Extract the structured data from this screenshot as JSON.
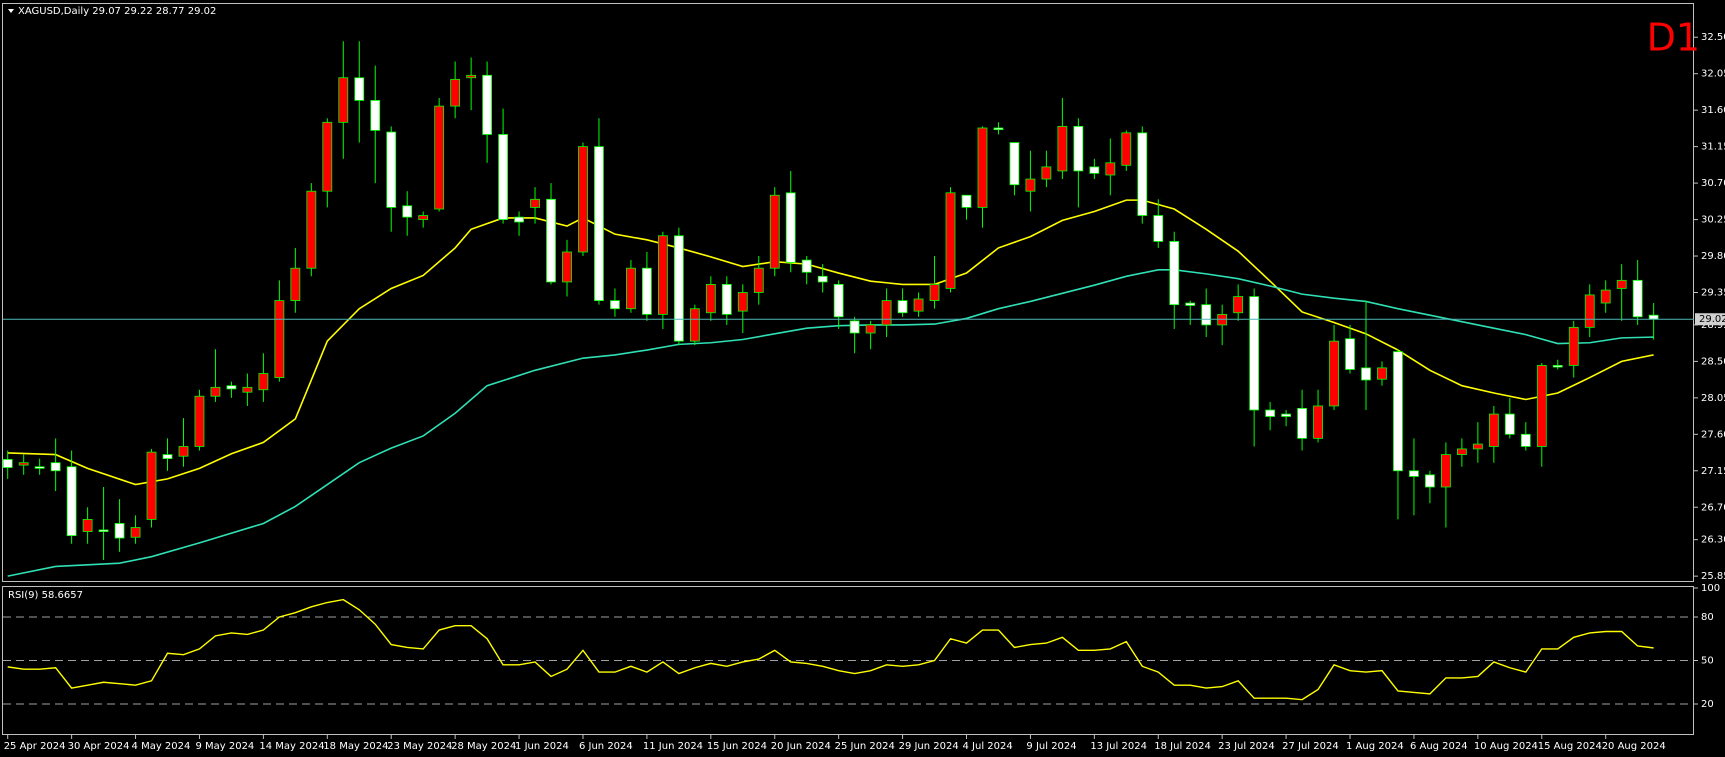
{
  "chart_data": [
    {
      "type": "candlestick",
      "title": "XAGUSD,Daily  29.07 29.22 28.77 29.02",
      "timeframe": "D1",
      "categories": [
        "25 Apr 2024",
        null,
        null,
        null,
        "30 Apr 2024",
        null,
        null,
        null,
        "4 May 2024",
        null,
        null,
        null,
        "9 May 2024",
        null,
        null,
        null,
        "14 May 2024",
        null,
        null,
        null,
        "18 May 2024",
        null,
        null,
        null,
        "23 May 2024",
        null,
        null,
        null,
        "28 May 2024",
        null,
        null,
        null,
        "1 Jun 2024",
        null,
        null,
        null,
        "6 Jun 2024",
        null,
        null,
        null,
        "11 Jun 2024",
        null,
        null,
        null,
        "15 Jun 2024",
        null,
        null,
        null,
        "20 Jun 2024",
        null,
        null,
        null,
        "25 Jun 2024",
        null,
        null,
        null,
        "29 Jun 2024",
        null,
        null,
        null,
        "4 Jul 2024",
        null,
        null,
        null,
        "9 Jul 2024",
        null,
        null,
        null,
        "13 Jul 2024",
        null,
        null,
        null,
        "18 Jul 2024",
        null,
        null,
        null,
        "23 Jul 2024",
        null,
        null,
        null,
        "27 Jul 2024",
        null,
        null,
        null,
        "1 Aug 2024",
        null,
        null,
        null,
        "6 Aug 2024",
        null,
        null,
        null,
        "10 Aug 2024",
        null,
        null,
        null,
        "15 Aug 2024",
        null,
        null,
        null,
        "20 Aug 2024",
        null,
        null,
        null
      ],
      "open": [
        27.29,
        27.22,
        27.2,
        27.25,
        27.2,
        26.4,
        26.42,
        26.5,
        26.33,
        26.55,
        27.35,
        27.33,
        27.45,
        28.07,
        28.2,
        28.12,
        28.15,
        28.3,
        29.25,
        29.65,
        30.6,
        31.45,
        32.0,
        31.72,
        31.33,
        30.42,
        30.25,
        30.38,
        31.65,
        32.0,
        32.03,
        31.3,
        30.28,
        30.4,
        30.5,
        29.48,
        29.85,
        31.15,
        29.25,
        29.15,
        29.65,
        29.08,
        30.05,
        28.75,
        29.1,
        29.45,
        29.12,
        29.35,
        29.65,
        30.58,
        29.75,
        29.55,
        29.45,
        29.0,
        28.85,
        28.95,
        29.25,
        29.12,
        29.25,
        29.4,
        30.55,
        30.4,
        31.38,
        31.2,
        30.6,
        30.75,
        30.85,
        31.4,
        30.9,
        30.8,
        30.92,
        31.32,
        30.3,
        29.98,
        29.22,
        29.2,
        28.95,
        29.1,
        29.3,
        27.9,
        27.85,
        27.92,
        27.55,
        27.95,
        28.78,
        28.42,
        28.28,
        28.62,
        27.15,
        27.1,
        26.95,
        27.35,
        27.42,
        27.45,
        27.85,
        27.6,
        27.45,
        28.45,
        28.45,
        28.92,
        29.22,
        29.4,
        29.5,
        29.07
      ],
      "high": [
        27.4,
        27.35,
        27.3,
        27.55,
        27.4,
        26.7,
        26.95,
        26.8,
        26.6,
        27.42,
        27.55,
        27.8,
        28.15,
        28.65,
        28.25,
        28.35,
        28.6,
        29.5,
        29.9,
        30.7,
        31.5,
        32.45,
        32.45,
        32.15,
        31.4,
        30.6,
        30.35,
        31.75,
        32.2,
        32.25,
        32.2,
        31.62,
        30.35,
        30.65,
        30.7,
        30.0,
        31.2,
        31.5,
        29.4,
        29.75,
        29.85,
        30.1,
        30.15,
        29.2,
        29.55,
        29.55,
        29.45,
        29.8,
        30.65,
        30.85,
        29.8,
        29.7,
        29.5,
        29.05,
        29.0,
        29.4,
        29.4,
        29.35,
        29.8,
        30.65,
        30.55,
        31.4,
        31.45,
        31.2,
        31.1,
        31.1,
        31.75,
        31.5,
        31.0,
        31.25,
        31.35,
        31.4,
        30.5,
        30.1,
        29.25,
        29.4,
        29.2,
        29.45,
        29.4,
        28.0,
        27.9,
        28.15,
        28.15,
        28.95,
        28.95,
        29.25,
        28.5,
        28.65,
        27.55,
        27.15,
        27.5,
        27.55,
        27.75,
        27.95,
        28.05,
        27.75,
        28.48,
        28.52,
        29.0,
        29.45,
        29.5,
        29.7,
        29.75,
        29.22
      ],
      "low": [
        27.05,
        27.1,
        27.1,
        26.9,
        26.25,
        26.25,
        26.05,
        26.15,
        26.25,
        26.45,
        27.15,
        27.2,
        27.4,
        28.0,
        28.05,
        27.95,
        28.0,
        28.25,
        29.1,
        29.55,
        30.4,
        31.0,
        31.2,
        30.7,
        30.1,
        30.05,
        30.15,
        30.35,
        31.5,
        31.6,
        30.95,
        30.2,
        30.05,
        30.2,
        29.45,
        29.3,
        29.8,
        29.2,
        29.05,
        29.1,
        29.0,
        28.9,
        28.7,
        28.7,
        29.0,
        28.95,
        28.85,
        29.2,
        29.55,
        29.6,
        29.45,
        29.35,
        28.9,
        28.6,
        28.65,
        28.8,
        29.05,
        29.05,
        29.15,
        29.35,
        30.25,
        30.15,
        31.3,
        30.55,
        30.35,
        30.65,
        30.75,
        30.4,
        30.75,
        30.55,
        30.85,
        30.2,
        29.9,
        28.9,
        28.95,
        28.8,
        28.7,
        29.0,
        27.45,
        27.65,
        27.7,
        27.4,
        27.5,
        27.9,
        28.35,
        27.9,
        28.2,
        26.55,
        26.6,
        26.75,
        26.45,
        27.2,
        27.25,
        27.25,
        27.55,
        27.4,
        27.2,
        28.4,
        28.3,
        28.8,
        29.1,
        29.0,
        28.95,
        28.77
      ],
      "close": [
        27.19,
        27.25,
        27.18,
        27.15,
        26.35,
        26.55,
        26.4,
        26.32,
        26.45,
        27.38,
        27.3,
        27.45,
        28.07,
        28.18,
        28.16,
        28.18,
        28.35,
        29.25,
        29.65,
        30.6,
        31.45,
        32.0,
        31.72,
        31.35,
        30.4,
        30.28,
        30.3,
        31.65,
        31.98,
        32.03,
        31.3,
        30.25,
        30.22,
        30.5,
        29.48,
        29.85,
        31.15,
        29.25,
        29.15,
        29.65,
        29.08,
        30.05,
        28.75,
        29.15,
        29.45,
        29.08,
        29.35,
        29.65,
        30.55,
        29.72,
        29.6,
        29.48,
        29.05,
        28.85,
        28.95,
        29.25,
        29.1,
        29.27,
        29.45,
        30.58,
        30.4,
        31.38,
        31.36,
        30.68,
        30.75,
        30.9,
        31.4,
        30.85,
        30.82,
        30.95,
        31.32,
        30.3,
        29.98,
        29.2,
        29.19,
        28.95,
        29.08,
        29.3,
        27.9,
        27.82,
        27.82,
        27.55,
        27.95,
        28.75,
        28.4,
        28.27,
        28.42,
        27.15,
        27.08,
        26.95,
        27.35,
        27.42,
        27.48,
        27.85,
        27.6,
        27.45,
        28.45,
        28.43,
        28.92,
        29.32,
        29.38,
        29.5,
        29.05,
        29.02
      ],
      "up_color": "#ff0000",
      "down_color": "#ffffff",
      "wick_color": "#00ff00",
      "series": [
        {
          "color": "#ffff00",
          "x": [
            0,
            3,
            5,
            8,
            10,
            12,
            14,
            16,
            18,
            20,
            22,
            24,
            26,
            28,
            29,
            31,
            33,
            35,
            36,
            38,
            40,
            42,
            44,
            46,
            48,
            50,
            52,
            54,
            56,
            58,
            60,
            62,
            64,
            66,
            68,
            70,
            71,
            73,
            75,
            77,
            79,
            81,
            83,
            85,
            87,
            89,
            91,
            93,
            95,
            97,
            99,
            101,
            103
          ],
          "values": [
            27.37,
            27.35,
            27.18,
            26.98,
            27.05,
            27.18,
            27.36,
            27.5,
            27.79,
            28.75,
            29.15,
            29.4,
            29.56,
            29.9,
            30.13,
            30.27,
            30.27,
            30.17,
            30.27,
            30.07,
            30.0,
            29.9,
            29.79,
            29.67,
            29.73,
            29.7,
            29.59,
            29.49,
            29.45,
            29.45,
            29.59,
            29.9,
            30.04,
            30.24,
            30.35,
            30.49,
            30.49,
            30.38,
            30.13,
            29.86,
            29.49,
            29.11,
            28.98,
            28.84,
            28.64,
            28.39,
            28.2,
            28.11,
            28.03,
            28.11,
            28.3,
            28.5,
            28.58
          ]
        },
        {
          "color": "#2fe0b5",
          "x": [
            0,
            3,
            7,
            9,
            12,
            16,
            18,
            20,
            22,
            24,
            26,
            28,
            30,
            33,
            36,
            38,
            40,
            42,
            44,
            46,
            48,
            50,
            52,
            54,
            56,
            58,
            60,
            62,
            64,
            66,
            68,
            70,
            72,
            73,
            75,
            77,
            79,
            81,
            83,
            85,
            87,
            89,
            91,
            93,
            95,
            97,
            99,
            101,
            103
          ],
          "values": [
            25.85,
            25.97,
            26.01,
            26.09,
            26.26,
            26.5,
            26.71,
            26.98,
            27.25,
            27.43,
            27.58,
            27.86,
            28.2,
            28.39,
            28.54,
            28.58,
            28.64,
            28.71,
            28.73,
            28.77,
            28.84,
            28.91,
            28.94,
            28.95,
            28.95,
            28.96,
            29.03,
            29.15,
            29.24,
            29.34,
            29.44,
            29.55,
            29.63,
            29.63,
            29.58,
            29.52,
            29.43,
            29.33,
            29.28,
            29.24,
            29.15,
            29.07,
            28.99,
            28.91,
            28.83,
            28.72,
            28.73,
            28.79,
            28.8
          ]
        }
      ],
      "current_price": 29.02,
      "current_price_color": "#4fb8b8",
      "ylim": [
        25.79,
        32.91
      ],
      "yticks": [
        {
          "value": 25.85,
          "label": "25.85"
        },
        {
          "value": 26.3,
          "label": "26.30"
        },
        {
          "value": 26.7,
          "label": "26.70"
        },
        {
          "value": 27.15,
          "label": "27.15"
        },
        {
          "value": 27.6,
          "label": "27.60"
        },
        {
          "value": 28.05,
          "label": "28.05"
        },
        {
          "value": 28.5,
          "label": "28.50"
        },
        {
          "value": 28.95,
          "label": "28.95"
        },
        {
          "value": 29.35,
          "label": "29.35"
        },
        {
          "value": 29.8,
          "label": "29.80"
        },
        {
          "value": 30.25,
          "label": "30.25"
        },
        {
          "value": 30.7,
          "label": "30.70"
        },
        {
          "value": 31.15,
          "label": "31.15"
        },
        {
          "value": 31.6,
          "label": "31.60"
        },
        {
          "value": 32.05,
          "label": "32.05"
        },
        {
          "value": 32.5,
          "label": "32.50"
        }
      ]
    },
    {
      "type": "line",
      "title": "RSI(9) 58.6657",
      "color": "#ffff00",
      "values": [
        45.6,
        44,
        44,
        45,
        31,
        33,
        35,
        34,
        33,
        36,
        55,
        54,
        58,
        67,
        69,
        68,
        71,
        80,
        83,
        87,
        90,
        92,
        85,
        75,
        61,
        59,
        58,
        71,
        74,
        74,
        65,
        47,
        47,
        49,
        39,
        44,
        57,
        42,
        42,
        46,
        42,
        49,
        41,
        45,
        48,
        46,
        49,
        51,
        57,
        49,
        48,
        46,
        43,
        41,
        43,
        47,
        46,
        47,
        50,
        65,
        62,
        71,
        71,
        59,
        61,
        62,
        66,
        57,
        57,
        58,
        63,
        46,
        42,
        33,
        33,
        31,
        32,
        36,
        24,
        24,
        24,
        23,
        30,
        47,
        43,
        42,
        43,
        29,
        28,
        27,
        38,
        38,
        39,
        49,
        45,
        42,
        58,
        58,
        66,
        69,
        70,
        70,
        60,
        58.6657
      ],
      "ylim": [
        0,
        100
      ],
      "yticks": [
        20,
        50,
        80,
        100
      ],
      "levels": [
        20,
        50,
        80
      ]
    }
  ]
}
